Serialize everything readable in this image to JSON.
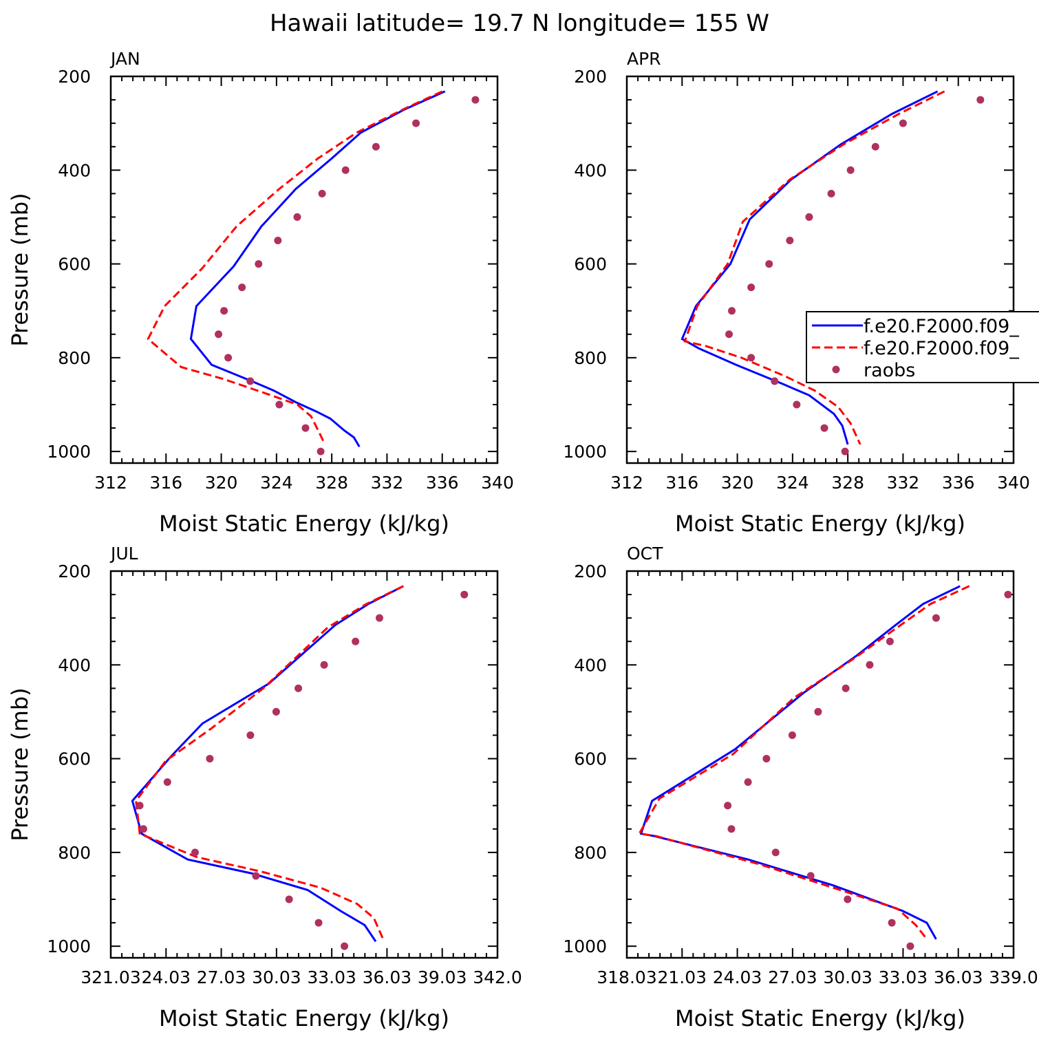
{
  "title": "Hawaii  latitude= 19.7 N longitude= 155 W",
  "legend": {
    "placement": "right-middle of APR panel (clipped at figure edge)",
    "entries": [
      {
        "label": "f.e20.F2000.f09_",
        "color": "#0000ff",
        "style": "solid"
      },
      {
        "label": "f.e20.F2000.f09_",
        "color": "#ff0000",
        "style": "dashed"
      },
      {
        "label": "raobs",
        "color": "#b03060",
        "style": "dot"
      }
    ]
  },
  "chart_data": [
    {
      "type": "line",
      "panel": "JAN",
      "xlabel": "Moist Static Energy (kJ/kg)",
      "ylabel": "Pressure (mb)",
      "xlim": [
        312,
        340
      ],
      "ylim": [
        1000,
        200
      ],
      "y_scale": "linear, inverted",
      "xticks": [
        "312",
        "316",
        "320",
        "324",
        "328",
        "332",
        "336",
        "340"
      ],
      "yticks": [
        "200",
        "400",
        "600",
        "800",
        "1000"
      ],
      "series": [
        {
          "color": "#0000ff",
          "style": "solid",
          "x": [
            336.2,
            333.3,
            330.1,
            328.0,
            325.4,
            322.9,
            320.9,
            318.2,
            317.8,
            319.3,
            322.2,
            323.8,
            325.4,
            326.9,
            327.9,
            328.9,
            329.6,
            330.0
          ],
          "y": [
            232,
            270,
            320,
            375,
            440,
            520,
            605,
            690,
            760,
            815,
            850,
            870,
            895,
            915,
            930,
            955,
            970,
            990
          ]
        },
        {
          "color": "#ff0000",
          "style": "dashed",
          "x": [
            336.0,
            333.2,
            329.8,
            327.0,
            324.2,
            321.1,
            318.6,
            315.9,
            314.7,
            317.1,
            320.1,
            321.6,
            323.6,
            325.5,
            326.5,
            327.1,
            327.5
          ],
          "y": [
            232,
            270,
            320,
            375,
            440,
            520,
            610,
            690,
            760,
            820,
            845,
            860,
            880,
            900,
            925,
            960,
            985
          ]
        }
      ],
      "points": {
        "color": "#b03060",
        "x": [
          338.4,
          334.1,
          331.2,
          329.0,
          327.3,
          325.5,
          324.1,
          322.7,
          321.5,
          320.2,
          319.8,
          320.5,
          322.1,
          324.2,
          326.1,
          327.2
        ],
        "y": [
          250,
          300,
          350,
          400,
          450,
          500,
          550,
          600,
          650,
          700,
          750,
          800,
          850,
          900,
          950,
          1000
        ]
      }
    },
    {
      "type": "line",
      "panel": "APR",
      "xlabel": "Moist Static Energy (kJ/kg)",
      "ylabel": "",
      "xlim": [
        312,
        340
      ],
      "ylim": [
        1000,
        200
      ],
      "y_scale": "linear, inverted",
      "xticks": [
        "312",
        "316",
        "320",
        "324",
        "328",
        "332",
        "336",
        "340"
      ],
      "yticks": [
        "200",
        "400",
        "600",
        "800",
        "1000"
      ],
      "series": [
        {
          "color": "#0000ff",
          "style": "solid",
          "x": [
            334.5,
            331.2,
            327.5,
            323.9,
            320.9,
            319.5,
            317.0,
            316.0,
            317.2,
            319.9,
            323.2,
            325.2,
            327.0,
            327.6,
            328.0
          ],
          "y": [
            232,
            280,
            345,
            420,
            505,
            600,
            690,
            760,
            780,
            815,
            855,
            880,
            920,
            945,
            985
          ]
        },
        {
          "color": "#ff0000",
          "style": "dashed",
          "x": [
            335.0,
            331.7,
            327.7,
            323.8,
            320.4,
            319.3,
            317.1,
            316.2,
            317.7,
            320.3,
            323.5,
            325.6,
            327.3,
            328.2,
            328.9
          ],
          "y": [
            232,
            280,
            345,
            420,
            510,
            600,
            690,
            765,
            775,
            800,
            840,
            870,
            905,
            940,
            985
          ]
        }
      ],
      "points": {
        "color": "#b03060",
        "x": [
          337.6,
          332.0,
          330.0,
          328.2,
          326.8,
          325.2,
          323.8,
          322.3,
          321.0,
          319.6,
          319.4,
          321.0,
          322.7,
          324.3,
          326.3,
          327.8
        ],
        "y": [
          250,
          300,
          350,
          400,
          450,
          500,
          550,
          600,
          650,
          700,
          750,
          800,
          850,
          900,
          950,
          1000
        ]
      }
    },
    {
      "type": "line",
      "panel": "JUL",
      "xlabel": "Moist Static Energy (kJ/kg)",
      "ylabel": "Pressure (mb)",
      "xlim": [
        321.03,
        342.0
      ],
      "ylim": [
        1000,
        200
      ],
      "y_scale": "linear, inverted",
      "xticks": [
        "321.03",
        "24.03",
        "27.03",
        "30.03",
        "33.03",
        "36.03",
        "39.03",
        "342.0"
      ],
      "yticks": [
        "200",
        "400",
        "600",
        "800",
        "1000"
      ],
      "series": [
        {
          "color": "#0000ff",
          "style": "solid",
          "x": [
            336.9,
            335.0,
            333.2,
            329.6,
            326.0,
            324.3,
            322.2,
            322.7,
            325.2,
            328.7,
            331.7,
            333.5,
            334.8,
            335.4
          ],
          "y": [
            232,
            270,
            315,
            440,
            525,
            595,
            690,
            760,
            815,
            845,
            880,
            925,
            955,
            990
          ]
        },
        {
          "color": "#ff0000",
          "style": "dashed",
          "x": [
            336.9,
            334.9,
            332.8,
            329.3,
            326.5,
            324.0,
            322.4,
            322.6,
            325.7,
            329.1,
            332.4,
            334.4,
            335.3,
            335.8
          ],
          "y": [
            232,
            270,
            320,
            450,
            535,
            605,
            690,
            760,
            810,
            840,
            875,
            910,
            940,
            985
          ]
        }
      ],
      "points": {
        "color": "#b03060",
        "x": [
          340.2,
          335.6,
          334.3,
          332.6,
          331.2,
          330.0,
          328.6,
          326.4,
          324.1,
          322.6,
          322.8,
          325.6,
          328.9,
          330.7,
          332.3,
          333.7
        ],
        "y": [
          250,
          300,
          350,
          400,
          450,
          500,
          550,
          600,
          650,
          700,
          750,
          800,
          850,
          900,
          950,
          1000
        ]
      }
    },
    {
      "type": "line",
      "panel": "OCT",
      "xlabel": "Moist Static Energy (kJ/kg)",
      "ylabel": "",
      "xlim": [
        318.03,
        339.0
      ],
      "ylim": [
        1000,
        200
      ],
      "y_scale": "linear, inverted",
      "xticks": [
        "318.03",
        "21.03",
        "24.03",
        "27.03",
        "30.03",
        "33.03",
        "36.03",
        "339.0"
      ],
      "yticks": [
        "200",
        "400",
        "600",
        "800",
        "1000"
      ],
      "series": [
        {
          "color": "#0000ff",
          "style": "solid",
          "x": [
            336.1,
            334.1,
            332.6,
            330.5,
            327.6,
            323.9,
            319.4,
            318.8,
            319.5,
            324.6,
            329.2,
            333.0,
            334.3,
            334.8
          ],
          "y": [
            232,
            270,
            315,
            380,
            460,
            580,
            690,
            760,
            765,
            815,
            870,
            925,
            950,
            985
          ]
        },
        {
          "color": "#ff0000",
          "style": "dashed",
          "x": [
            336.6,
            334.5,
            332.7,
            330.4,
            327.1,
            323.8,
            319.8,
            318.7,
            319.6,
            325.2,
            329.6,
            332.7,
            333.7,
            334.3
          ],
          "y": [
            232,
            270,
            320,
            385,
            470,
            590,
            685,
            760,
            765,
            825,
            880,
            920,
            955,
            985
          ]
        }
      ],
      "points": {
        "color": "#b03060",
        "x": [
          338.7,
          334.8,
          332.3,
          331.2,
          329.9,
          328.4,
          327.0,
          325.6,
          324.6,
          323.5,
          323.7,
          326.1,
          328.0,
          330.0,
          332.4,
          333.4
        ],
        "y": [
          250,
          300,
          350,
          400,
          450,
          500,
          550,
          600,
          650,
          700,
          750,
          800,
          850,
          900,
          950,
          1000
        ]
      }
    }
  ]
}
